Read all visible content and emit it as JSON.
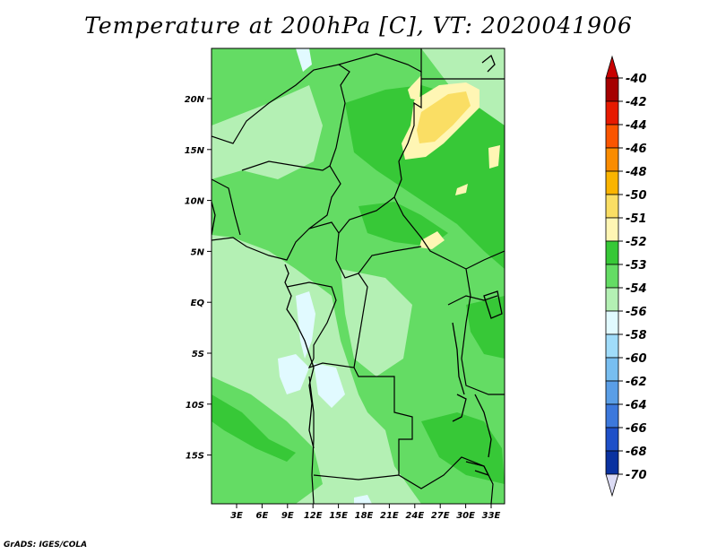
{
  "title": "Temperature at 200hPa [C], VT: 2020041906",
  "credit": "GrADS: IGES/COLA",
  "map": {
    "lat_labels": [
      "20N",
      "15N",
      "10N",
      "5N",
      "EQ",
      "5S",
      "10S",
      "15S"
    ],
    "lon_labels": [
      "3E",
      "6E",
      "9E",
      "12E",
      "15E",
      "18E",
      "21E",
      "24E",
      "27E",
      "30E",
      "33E"
    ]
  },
  "colorbar": {
    "labels": [
      "-40",
      "-42",
      "-44",
      "-46",
      "-48",
      "-50",
      "-51",
      "-52",
      "-53",
      "-54",
      "-56",
      "-58",
      "-60",
      "-62",
      "-64",
      "-66",
      "-68",
      "-70"
    ],
    "colors": [
      "#a50000",
      "#e61a00",
      "#fa5500",
      "#fa8c00",
      "#fab400",
      "#fade64",
      "#fff6b4",
      "#37c837",
      "#64dc64",
      "#b4f0b4",
      "#e1faff",
      "#a0dcfa",
      "#78bef0",
      "#5a9ee6",
      "#3c78dc",
      "#1e50c8",
      "#0a32a0",
      "#0a1464"
    ],
    "top_color": "#c80000",
    "bottom_color": "#dcdcf5"
  }
}
